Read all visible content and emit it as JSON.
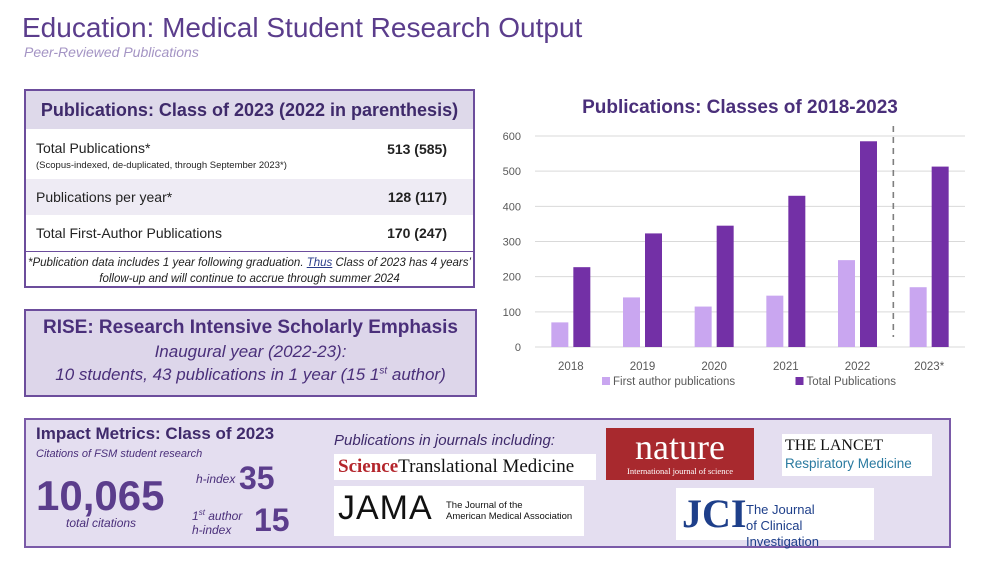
{
  "header": {
    "title": "Education: Medical Student Research Output",
    "subtitle": "Peer-Reviewed Publications"
  },
  "publications_table": {
    "title": "Publications: Class of 2023 (2022 in parenthesis)",
    "rows": [
      {
        "label": "Total Publications*",
        "sublabel": "(Scopus-indexed, de-duplicated, through September 2023*)",
        "value": "513 (585)"
      },
      {
        "label": "Publications per year*",
        "value": "128 (117)"
      },
      {
        "label": "Total First-Author Publications",
        "value": "170 (247)"
      }
    ],
    "note_part1": "*Publication data includes 1 year following graduation. ",
    "note_link": "Thus",
    "note_part2": " Class of 2023 has 4 years’ follow-up and will continue to accrue through summer 2024"
  },
  "rise": {
    "title": "RISE: Research Intensive Scholarly Emphasis",
    "line1": "Inaugural year (2022-23):",
    "line2_pre": "10 students, 43 publications in 1 year (15 1",
    "line2_sup": "st",
    "line2_post": " author)"
  },
  "chart_data": {
    "type": "bar",
    "title": "Publications: Classes of 2018-2023",
    "categories": [
      "2018",
      "2019",
      "2020",
      "2021",
      "2022",
      "2023*"
    ],
    "series": [
      {
        "name": "First author publications",
        "values": [
          70,
          141,
          115,
          146,
          247,
          170
        ],
        "color": "#c9a6f0"
      },
      {
        "name": "Total Publications",
        "values": [
          227,
          323,
          345,
          430,
          585,
          513
        ],
        "color": "#7330a6"
      }
    ],
    "ylim": [
      0,
      600
    ],
    "yticks": [
      0,
      100,
      200,
      300,
      400,
      500,
      600
    ],
    "grid": true,
    "legend": "bottom",
    "divider_before": "2023*"
  },
  "impact": {
    "title": "Impact Metrics: Class of 2023",
    "citations_label": "Citations of FSM student research",
    "total_citations": "10,065",
    "total_citations_label": "total citations",
    "h_index_label": "h-index",
    "h_index": "35",
    "first_author_pre": "1",
    "first_author_sup": "st",
    "first_author_post": " author",
    "first_author_line2": "h-index",
    "first_author_h_index": "15"
  },
  "journals": {
    "label": "Publications in journals including:",
    "stm_science": "Science",
    "stm_rest": "Translational Medicine",
    "jama_big": "JAMA",
    "jama_line1": "The Journal of the",
    "jama_line2": "American Medical Association",
    "nature_big": "nature",
    "nature_small": "International journal of science",
    "lancet_big": "THE LANCET",
    "lancet_small": "Respiratory Medicine",
    "jci_big": "JCI",
    "jci_line1": "The Journal",
    "jci_line2": "of Clinical Investigation"
  }
}
